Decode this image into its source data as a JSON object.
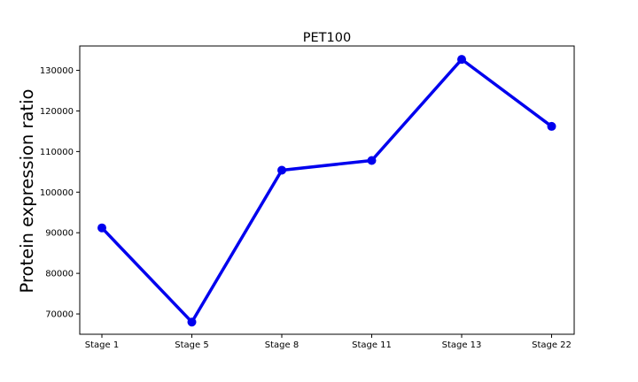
{
  "chart_data": {
    "type": "line",
    "title": "PET100",
    "xlabel": "",
    "ylabel": "Protein expression ratio",
    "categories": [
      "Stage 1",
      "Stage 5",
      "Stage 8",
      "Stage 11",
      "Stage 13",
      "Stage 22"
    ],
    "series": [
      {
        "values": [
          91200,
          68000,
          105400,
          107800,
          132700,
          116200
        ],
        "color": "#0000ee"
      }
    ],
    "yticks": [
      70000,
      80000,
      90000,
      100000,
      110000,
      120000,
      130000
    ],
    "ylim": [
      65000,
      136000
    ],
    "grid": false,
    "legend": "none"
  }
}
